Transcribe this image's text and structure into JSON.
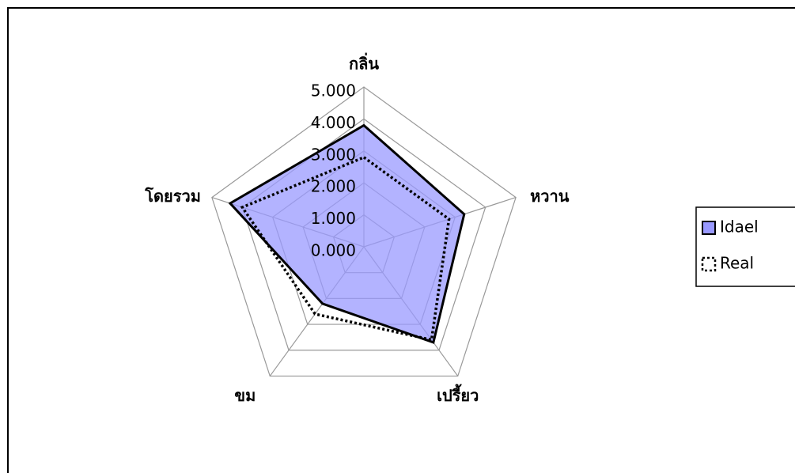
{
  "chart_data": {
    "type": "radar",
    "categories": [
      "กลิ่น",
      "หวาน",
      "เปรี้ยว",
      "ขม",
      "โดยรวม"
    ],
    "series": [
      {
        "name": "Idael",
        "color": "#9999ff",
        "values": [
          3.8,
          3.3,
          3.7,
          2.2,
          4.4
        ]
      },
      {
        "name": "Real",
        "color": "#000000",
        "values": [
          2.8,
          2.8,
          3.6,
          2.6,
          4.0
        ]
      }
    ],
    "ylim": [
      0,
      5
    ],
    "yticks": [
      {
        "value": 0,
        "label": "0.000"
      },
      {
        "value": 1,
        "label": "1.000"
      },
      {
        "value": 2,
        "label": "2.000"
      },
      {
        "value": 3,
        "label": "3.000"
      },
      {
        "value": 4,
        "label": "4.000"
      },
      {
        "value": 5,
        "label": "5.000"
      }
    ],
    "grid": true
  }
}
